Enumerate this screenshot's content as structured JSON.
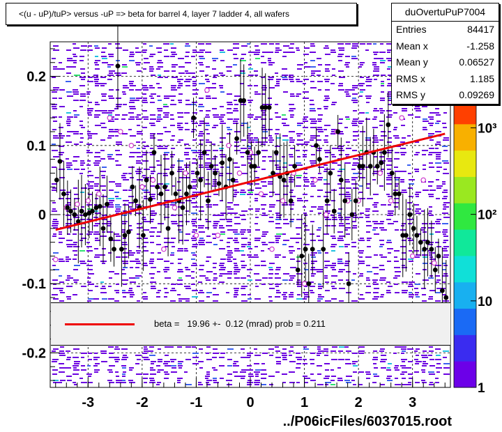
{
  "chart_data": {
    "type": "scatter",
    "title": "<(u - uP)/tuP> versus  -uP => beta for barrel 4, layer 7 ladder 4, all wafers",
    "xlabel": "",
    "ylabel": "",
    "xlim": [
      -3.7,
      3.7
    ],
    "ylim": [
      -0.25,
      0.25
    ],
    "x_ticks": [
      -3,
      -2,
      -1,
      0,
      1,
      2,
      3
    ],
    "x_tick_labels": [
      "-3",
      "-2",
      "-1",
      "0",
      "1",
      "2",
      "3"
    ],
    "y_ticks": [
      -0.2,
      -0.1,
      0,
      0.1,
      0.2
    ],
    "y_tick_labels": [
      "-0.2",
      "-0.1",
      "0",
      "0.1",
      "0.2"
    ],
    "grid": true,
    "colorbar": {
      "scale": "log",
      "tick_labels": [
        "1",
        "10",
        "10²",
        "10³"
      ],
      "colors": [
        "#6c00e8",
        "#3a2cf0",
        "#1a6af5",
        "#18b0f0",
        "#10e0d8",
        "#10e89a",
        "#30e840",
        "#9ae820",
        "#e8e810",
        "#f8b000",
        "#ff4000"
      ]
    },
    "series": [
      {
        "name": "black",
        "color": "#000000",
        "marker": "filled-circle",
        "x": [
          -3.58,
          -3.52,
          -3.45,
          -3.38,
          -3.32,
          -3.25,
          -3.18,
          -3.12,
          -3.05,
          -2.98,
          -2.92,
          -2.85,
          -2.78,
          -2.72,
          -2.65,
          -2.58,
          -2.52,
          -2.45,
          -2.38,
          -2.32,
          -2.25,
          -2.18,
          -2.12,
          -2.05,
          -1.98,
          -1.92,
          -1.85,
          -1.78,
          -1.72,
          -1.65,
          -1.58,
          -1.52,
          -1.45,
          -1.38,
          -1.32,
          -1.25,
          -1.18,
          -1.12,
          -1.05,
          -0.98,
          -0.92,
          -0.85,
          -0.78,
          -0.72,
          -0.65,
          -0.58,
          -0.52,
          -0.45,
          -0.38,
          -0.32,
          -0.25,
          -0.18,
          -0.12,
          -0.05,
          0.02,
          0.08,
          0.15,
          0.22,
          0.28,
          0.35,
          0.42,
          0.48,
          0.55,
          0.62,
          0.68,
          0.75,
          0.82,
          0.88,
          0.95,
          1.02,
          1.08,
          1.15,
          1.22,
          1.28,
          1.35,
          1.42,
          1.48,
          1.55,
          1.62,
          1.68,
          1.75,
          1.82,
          1.88,
          1.95,
          2.02,
          2.08,
          2.15,
          2.22,
          2.28,
          2.35,
          2.42,
          2.48,
          2.55,
          2.62,
          2.68,
          2.75,
          2.82,
          2.88,
          2.95,
          3.02,
          3.08,
          3.15,
          3.22,
          3.28,
          3.35,
          3.42,
          3.48,
          3.55,
          3.62
        ],
        "y": [
          0.05,
          0.077,
          0.03,
          0.01,
          0.005,
          0.0,
          -0.01,
          0.005,
          0.0,
          0.002,
          0.005,
          0.01,
          0.012,
          -0.02,
          0.015,
          -0.035,
          -0.05,
          0.215,
          -0.05,
          -0.03,
          -0.025,
          0.04,
          0.02,
          0.01,
          -0.03,
          0.05,
          0.022,
          0.09,
          0.04,
          0.03,
          0.04,
          -0.02,
          0.06,
          0.03,
          0.02,
          0.01,
          0.03,
          0.04,
          0.14,
          0.06,
          0.05,
          0.09,
          0.02,
          0.07,
          0.06,
          0.045,
          0.075,
          0.04,
          0.08,
          0.05,
          0.11,
          0.165,
          0.165,
          0.09,
          0.07,
          0.07,
          0.09,
          0.155,
          0.155,
          0.155,
          0.06,
          0.09,
          0.055,
          0.05,
          0.06,
          0.02,
          0.07,
          -0.08,
          -0.06,
          -0.05,
          -0.1,
          -0.05,
          0.1,
          0.08,
          -0.05,
          0.02,
          0.06,
          0.005,
          0.12,
          0.05,
          0.02,
          -0.1,
          0.0,
          0.02,
          0.07,
          0.07,
          0.09,
          0.07,
          0.09,
          0.07,
          0.075,
          0.09,
          0.13,
          0.06,
          0.03,
          0.03,
          -0.03,
          -0.03,
          0.0,
          -0.02,
          -0.03,
          -0.04,
          -0.05,
          -0.04,
          -0.05,
          -0.08,
          -0.06,
          -0.11,
          -0.12
        ]
      },
      {
        "name": "magenta",
        "color": "#cc33cc",
        "marker": "open-circle",
        "x": [
          -3.6,
          -3.4,
          -3.2,
          -3.0,
          -2.8,
          -2.6,
          -2.4,
          -2.2,
          -2.0,
          -1.8,
          -1.6,
          -1.4,
          -1.2,
          -1.0,
          -0.8,
          -0.6,
          -0.4,
          -0.2,
          0.0,
          0.2,
          0.4,
          0.6,
          0.8,
          1.0,
          1.2,
          1.4,
          1.6,
          1.8,
          2.0,
          2.2,
          2.4,
          2.6,
          2.8,
          3.0,
          3.2,
          3.4
        ],
        "y": [
          -0.065,
          0.01,
          0.015,
          0.02,
          0.03,
          0.14,
          0.12,
          0.1,
          0.04,
          0.05,
          -0.05,
          0.01,
          0.06,
          -0.03,
          0.18,
          -0.03,
          0.1,
          0.06,
          0.09,
          0.03,
          -0.05,
          0.02,
          0.06,
          -0.1,
          0.05,
          0.0,
          0.12,
          0.02,
          0.02,
          0.09,
          0.06,
          0.02,
          0.14,
          -0.06,
          0.05,
          -0.07
        ]
      }
    ],
    "fit_line": {
      "x": [
        -3.6,
        3.6
      ],
      "y": [
        -0.022,
        0.117
      ],
      "color": "#ee0000"
    }
  },
  "stats": {
    "name": "duOvertuPuP7004",
    "rows": [
      {
        "label": "Entries",
        "value": "84417"
      },
      {
        "label": "Mean x",
        "value": "-1.258"
      },
      {
        "label": "Mean y",
        "value": "0.06527"
      },
      {
        "label": "RMS x",
        "value": "1.185"
      },
      {
        "label": "RMS y",
        "value": "0.09269"
      }
    ]
  },
  "fit": {
    "legend_text": "beta =   19.96 +-  0.12 (mrad) prob = 0.211"
  },
  "footer": "../P06icFiles/6037015.root"
}
